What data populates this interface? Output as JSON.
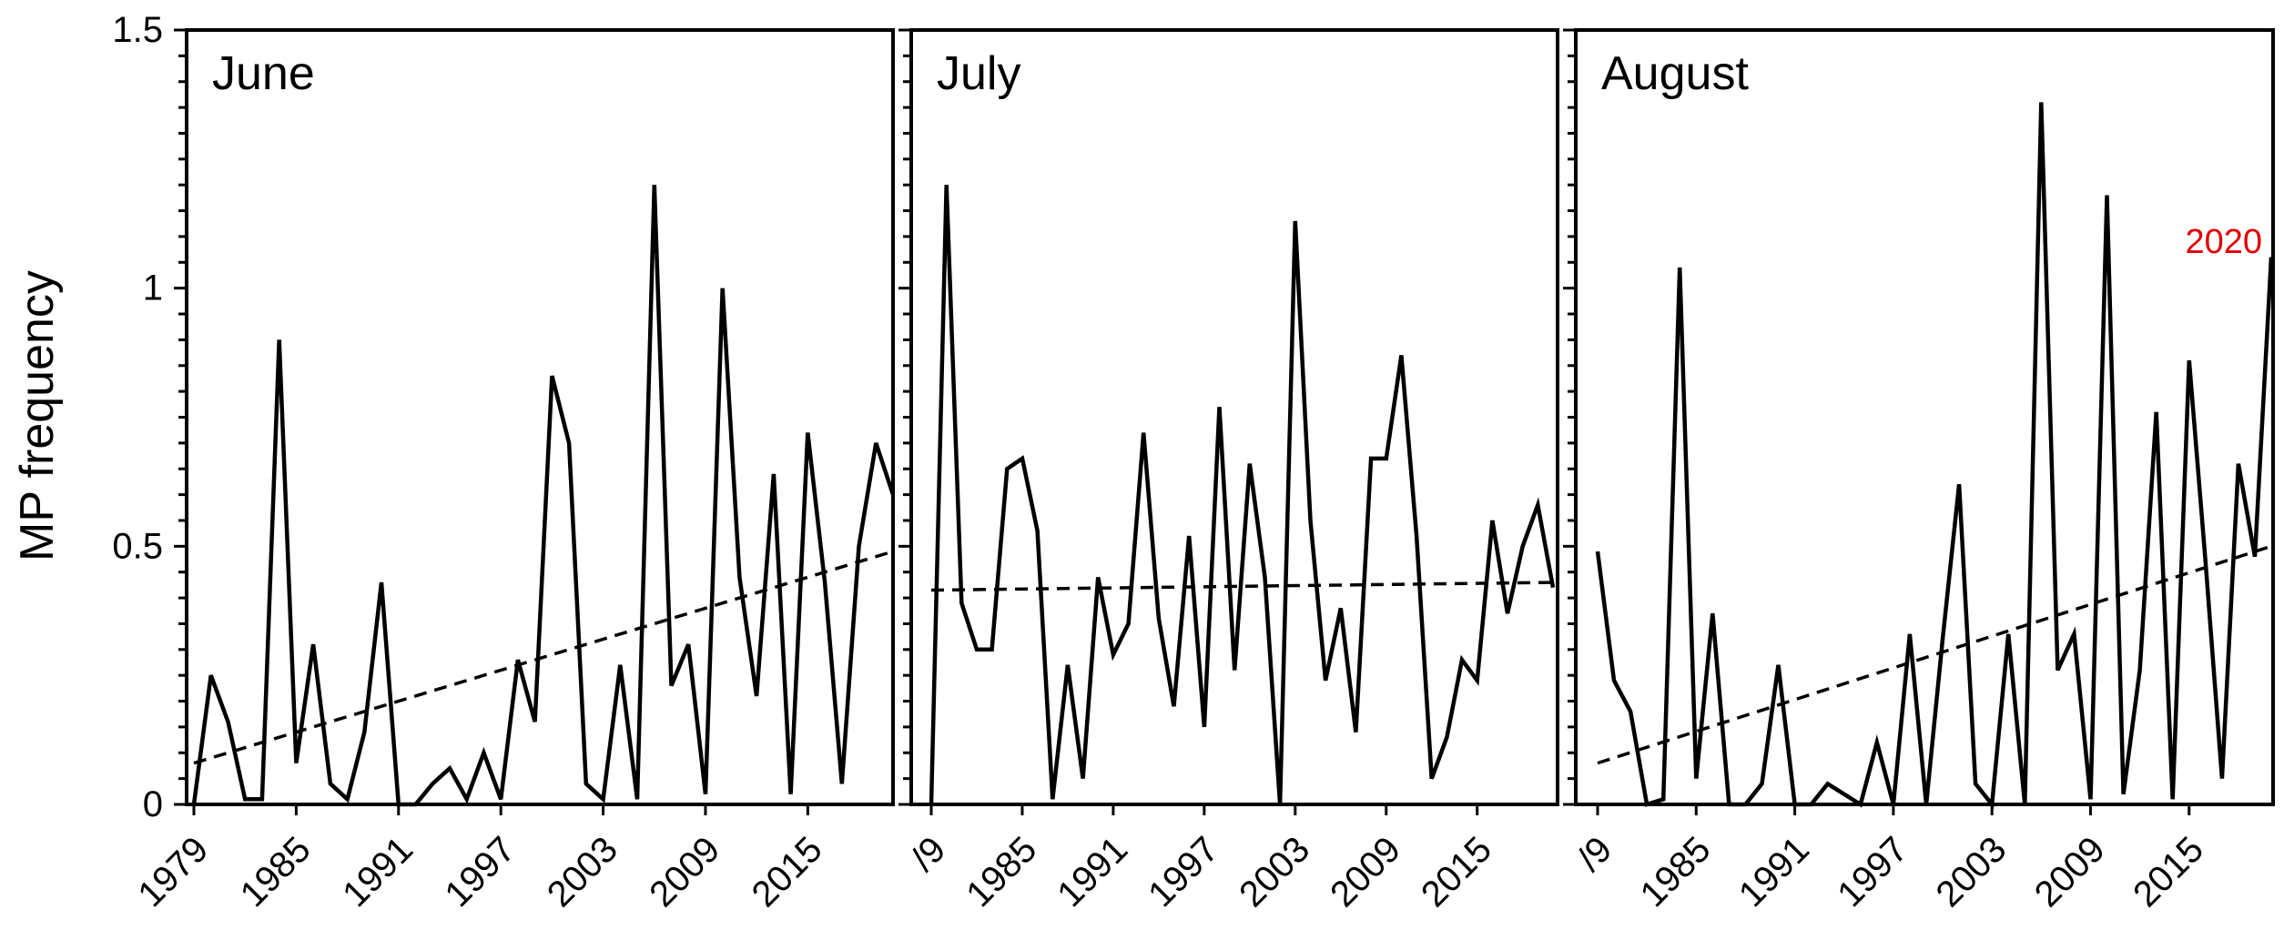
{
  "chart_data": {
    "type": "line",
    "ylabel": "MP frequency",
    "ylim": [
      0,
      1.5
    ],
    "yticks": [
      "0",
      "0.5",
      "1",
      "1.5"
    ],
    "xlim": [
      1979,
      2020
    ],
    "xticks": [
      1979,
      1985,
      1991,
      1997,
      2003,
      2009,
      2015
    ],
    "xtick_labels": [
      "1979",
      "1985",
      "1991",
      "1997",
      "2003",
      "2009",
      "2015"
    ],
    "xtick_labels_partial": [
      "/9",
      "/9"
    ],
    "grid": false,
    "panels": [
      {
        "title": "June",
        "x": [
          1979,
          1980,
          1981,
          1982,
          1983,
          1984,
          1985,
          1986,
          1987,
          1988,
          1989,
          1990,
          1991,
          1992,
          1993,
          1994,
          1995,
          1996,
          1997,
          1998,
          1999,
          2000,
          2001,
          2002,
          2003,
          2004,
          2005,
          2006,
          2007,
          2008,
          2009,
          2010,
          2011,
          2012,
          2013,
          2014,
          2015,
          2016,
          2017,
          2018,
          2019,
          2020
        ],
        "series": [
          {
            "values": [
              0.0,
              0.25,
              0.16,
              0.01,
              0.01,
              0.9,
              0.08,
              0.31,
              0.04,
              0.01,
              0.14,
              0.43,
              0.0,
              0.0,
              0.04,
              0.07,
              0.01,
              0.1,
              0.01,
              0.28,
              0.16,
              0.83,
              0.7,
              0.04,
              0.01,
              0.27,
              0.01,
              1.2,
              0.23,
              0.31,
              0.02,
              1.0,
              0.44,
              0.21,
              0.64,
              0.02,
              0.72,
              0.43,
              0.04,
              0.5,
              0.7,
              0.6
            ]
          },
          {
            "trend": true,
            "values": [
              0.08,
              0.49
            ]
          }
        ]
      },
      {
        "title": "July",
        "x": [
          1979,
          1980,
          1981,
          1982,
          1983,
          1984,
          1985,
          1986,
          1987,
          1988,
          1989,
          1990,
          1991,
          1992,
          1993,
          1994,
          1995,
          1996,
          1997,
          1998,
          1999,
          2000,
          2001,
          2002,
          2003,
          2004,
          2005,
          2006,
          2007,
          2008,
          2009,
          2010,
          2011,
          2012,
          2013,
          2014,
          2015,
          2016,
          2017,
          2018,
          2019,
          2020
        ],
        "series": [
          {
            "values": [
              0.0,
              1.2,
              0.39,
              0.3,
              0.3,
              0.65,
              0.67,
              0.53,
              0.01,
              0.27,
              0.05,
              0.44,
              0.29,
              0.35,
              0.72,
              0.36,
              0.19,
              0.52,
              0.15,
              0.77,
              0.26,
              0.66,
              0.44,
              0.0,
              1.13,
              0.55,
              0.24,
              0.38,
              0.14,
              0.67,
              0.67,
              0.87,
              0.52,
              0.05,
              0.13,
              0.28,
              0.24,
              0.55,
              0.37,
              0.5,
              0.58,
              0.42
            ]
          },
          {
            "trend": true,
            "values": [
              0.415,
              0.43
            ]
          }
        ]
      },
      {
        "title": "August",
        "annotation": "2020",
        "x": [
          1979,
          1980,
          1981,
          1982,
          1983,
          1984,
          1985,
          1986,
          1987,
          1988,
          1989,
          1990,
          1991,
          1992,
          1993,
          1994,
          1995,
          1996,
          1997,
          1998,
          1999,
          2000,
          2001,
          2002,
          2003,
          2004,
          2005,
          2006,
          2007,
          2008,
          2009,
          2010,
          2011,
          2012,
          2013,
          2014,
          2015,
          2016,
          2017,
          2018,
          2019,
          2020
        ],
        "series": [
          {
            "values": [
              0.49,
              0.24,
              0.18,
              0.0,
              0.01,
              1.04,
              0.05,
              0.37,
              0.0,
              0.0,
              0.04,
              0.27,
              0.0,
              0.0,
              0.04,
              0.02,
              0.0,
              0.12,
              0.0,
              0.33,
              0.0,
              0.32,
              0.62,
              0.04,
              0.0,
              0.33,
              0.0,
              1.36,
              0.26,
              0.33,
              0.01,
              1.18,
              0.02,
              0.26,
              0.76,
              0.01,
              0.86,
              0.47,
              0.05,
              0.66,
              0.48,
              1.06
            ]
          },
          {
            "trend": true,
            "values": [
              0.08,
              0.5
            ]
          }
        ]
      }
    ]
  },
  "colors": {
    "line": "#000000",
    "annotation": "#e00000"
  }
}
